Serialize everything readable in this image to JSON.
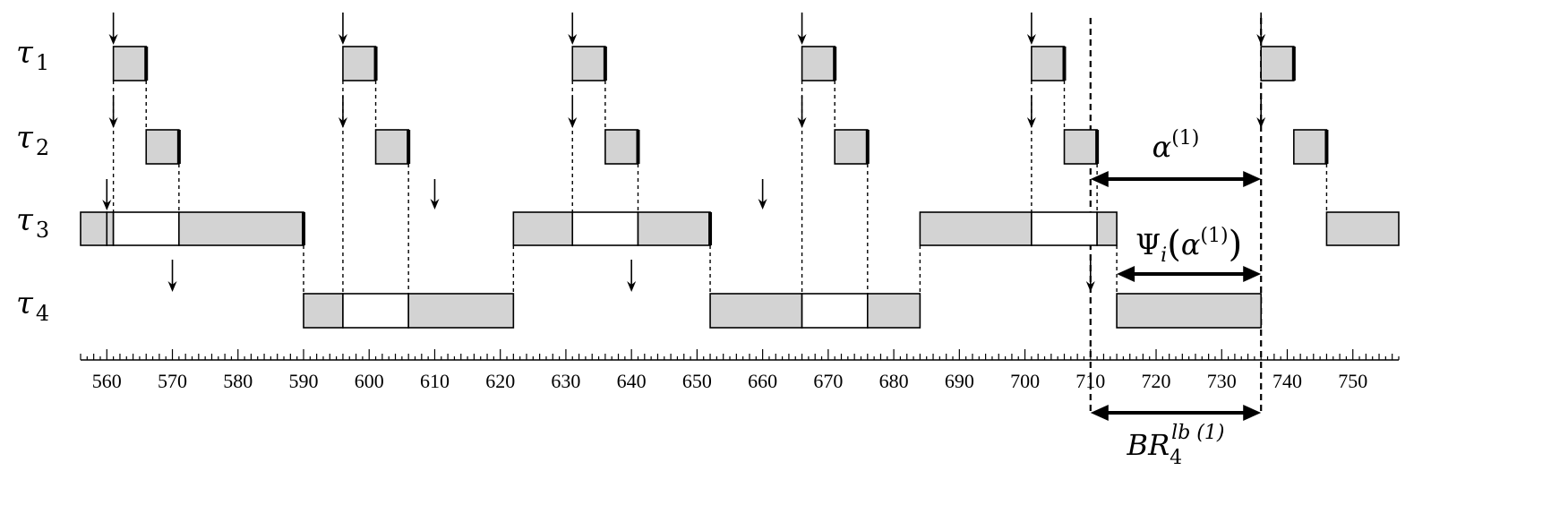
{
  "tasks": [
    {
      "symbol": "τ",
      "index": "1"
    },
    {
      "symbol": "τ",
      "index": "2"
    },
    {
      "symbol": "τ",
      "index": "3"
    },
    {
      "symbol": "τ",
      "index": "4"
    }
  ],
  "axis": {
    "min": 556,
    "max": 757,
    "major_step": 10,
    "minor_step": 2,
    "tick_labels": [
      "560",
      "570",
      "580",
      "590",
      "600",
      "610",
      "620",
      "630",
      "640",
      "650",
      "660",
      "670",
      "680",
      "690",
      "700",
      "710",
      "720",
      "730",
      "740",
      "750"
    ]
  },
  "rows": [
    {
      "task": 0,
      "segments": [
        {
          "start": 561,
          "end": 566,
          "busy": true,
          "finished": true
        },
        {
          "start": 596,
          "end": 601,
          "busy": true,
          "finished": true
        },
        {
          "start": 631,
          "end": 636,
          "busy": true,
          "finished": true
        },
        {
          "start": 666,
          "end": 671,
          "busy": true,
          "finished": true
        },
        {
          "start": 701,
          "end": 706,
          "busy": true,
          "finished": true
        },
        {
          "start": 736,
          "end": 741,
          "busy": true,
          "finished": true
        }
      ],
      "releases": [
        561,
        596,
        631,
        666,
        701,
        736
      ]
    },
    {
      "task": 1,
      "segments": [
        {
          "start": 566,
          "end": 571,
          "busy": true,
          "finished": true
        },
        {
          "start": 601,
          "end": 606,
          "busy": true,
          "finished": true
        },
        {
          "start": 636,
          "end": 641,
          "busy": true,
          "finished": true
        },
        {
          "start": 671,
          "end": 676,
          "busy": true,
          "finished": true
        },
        {
          "start": 706,
          "end": 711,
          "busy": true,
          "finished": true
        },
        {
          "start": 741,
          "end": 746,
          "busy": true,
          "finished": true
        }
      ],
      "releases": [
        561,
        596,
        631,
        666,
        701,
        736
      ]
    },
    {
      "task": 2,
      "segments": [
        {
          "start": 556,
          "end": 560,
          "busy": true,
          "finished": false
        },
        {
          "start": 560,
          "end": 561,
          "busy": true,
          "finished": false
        },
        {
          "start": 561,
          "end": 571,
          "busy": false,
          "finished": false
        },
        {
          "start": 571,
          "end": 590,
          "busy": true,
          "finished": true
        },
        {
          "start": 622,
          "end": 631,
          "busy": true,
          "finished": false
        },
        {
          "start": 631,
          "end": 641,
          "busy": false,
          "finished": false
        },
        {
          "start": 641,
          "end": 652,
          "busy": true,
          "finished": true
        },
        {
          "start": 684,
          "end": 701,
          "busy": true,
          "finished": false
        },
        {
          "start": 701,
          "end": 711,
          "busy": false,
          "finished": false
        },
        {
          "start": 711,
          "end": 714,
          "busy": true,
          "finished": false
        },
        {
          "start": 746,
          "end": 757,
          "busy": true,
          "finished": false
        }
      ],
      "releases": [
        560,
        610,
        660
      ]
    },
    {
      "task": 3,
      "segments": [
        {
          "start": 590,
          "end": 596,
          "busy": true,
          "finished": false
        },
        {
          "start": 596,
          "end": 606,
          "busy": false,
          "finished": false
        },
        {
          "start": 606,
          "end": 622,
          "busy": true,
          "finished": false
        },
        {
          "start": 652,
          "end": 666,
          "busy": true,
          "finished": false
        },
        {
          "start": 666,
          "end": 676,
          "busy": false,
          "finished": false
        },
        {
          "start": 676,
          "end": 684,
          "busy": true,
          "finished": false
        },
        {
          "start": 714,
          "end": 736,
          "busy": true,
          "finished": false
        }
      ],
      "releases": [
        570,
        640,
        710
      ]
    }
  ],
  "guides": [
    {
      "t": 561,
      "from_row": 0,
      "to_row": 2
    },
    {
      "t": 566,
      "from_row": 0,
      "to_row": 1
    },
    {
      "t": 571,
      "from_row": 1,
      "to_row": 2
    },
    {
      "t": 590,
      "from_row": 2,
      "to_row": 3
    },
    {
      "t": 596,
      "from_row": 0,
      "to_row": 3
    },
    {
      "t": 601,
      "from_row": 0,
      "to_row": 1
    },
    {
      "t": 606,
      "from_row": 1,
      "to_row": 3
    },
    {
      "t": 622,
      "from_row": 2,
      "to_row": 3
    },
    {
      "t": 631,
      "from_row": 0,
      "to_row": 2
    },
    {
      "t": 636,
      "from_row": 0,
      "to_row": 1
    },
    {
      "t": 641,
      "from_row": 1,
      "to_row": 2
    },
    {
      "t": 652,
      "from_row": 2,
      "to_row": 3
    },
    {
      "t": 666,
      "from_row": 0,
      "to_row": 3
    },
    {
      "t": 671,
      "from_row": 0,
      "to_row": 1
    },
    {
      "t": 676,
      "from_row": 1,
      "to_row": 3
    },
    {
      "t": 684,
      "from_row": 2,
      "to_row": 3
    },
    {
      "t": 701,
      "from_row": 0,
      "to_row": 2
    },
    {
      "t": 706,
      "from_row": 0,
      "to_row": 1
    },
    {
      "t": 711,
      "from_row": 1,
      "to_row": 2
    },
    {
      "t": 714,
      "from_row": 2,
      "to_row": 3
    },
    {
      "t": 746,
      "from_row": 1,
      "to_row": 2
    }
  ],
  "annotations": {
    "alpha": {
      "base": "α",
      "sup": "(1)",
      "start": 710,
      "end": 736
    },
    "psi": {
      "base": "Ψ",
      "sub": "i",
      "arg_base": "α",
      "arg_sup": "(1)",
      "start": 714,
      "end": 736
    },
    "br": {
      "base": "BR",
      "sub": "4",
      "sup": "lb (1)",
      "start": 710,
      "end": 736
    }
  }
}
